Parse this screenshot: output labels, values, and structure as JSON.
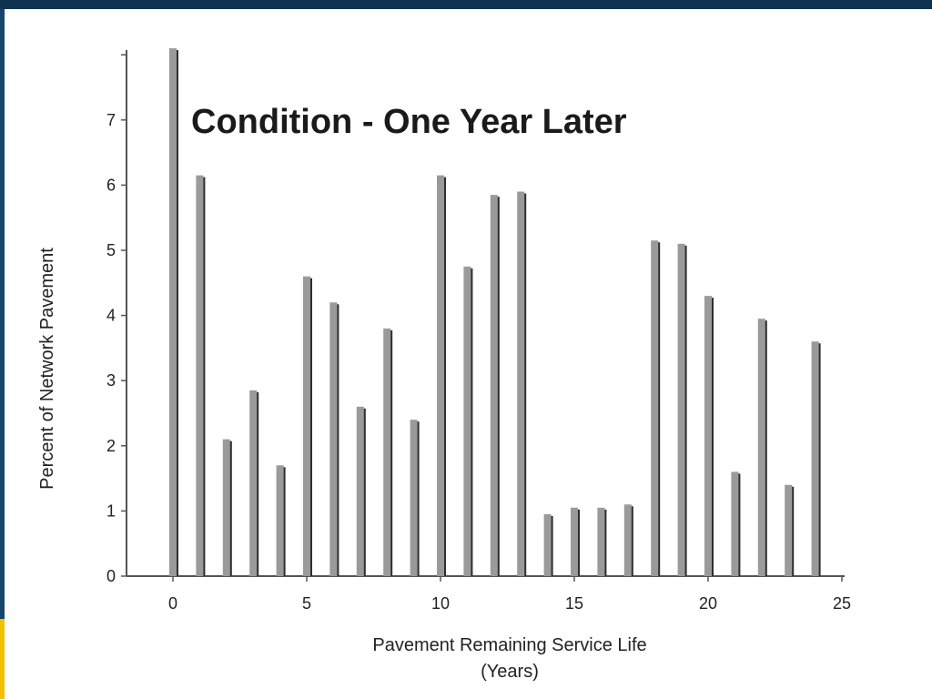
{
  "colors": {
    "frame": "#14466b",
    "frame_top": "#0d3350",
    "accent": "#f2c200",
    "bar_fill": "#9a9a9a",
    "bar_shadow": "#2e2e2e",
    "axis": "#555555"
  },
  "chart_data": {
    "type": "bar",
    "title": "Condition - One Year Later",
    "xlabel": "Pavement Remaining Service Life",
    "xlabel_unit": "(Years)",
    "ylabel": "Percent of Network Pavement",
    "xlim": [
      0,
      25
    ],
    "ylim": [
      0,
      8
    ],
    "x_ticks": [
      0,
      5,
      10,
      15,
      20,
      25
    ],
    "y_ticks": [
      0,
      1,
      2,
      3,
      4,
      5,
      6,
      7
    ],
    "grid": false,
    "legend": "none",
    "x": [
      0,
      1,
      2,
      3,
      4,
      5,
      6,
      7,
      8,
      9,
      10,
      11,
      12,
      13,
      14,
      15,
      16,
      17,
      18,
      19,
      20,
      21,
      22,
      23,
      24
    ],
    "values": [
      8.1,
      6.15,
      2.1,
      2.85,
      1.7,
      4.6,
      4.2,
      2.6,
      3.8,
      2.4,
      6.15,
      4.75,
      5.85,
      5.9,
      0.95,
      1.05,
      1.05,
      1.1,
      5.15,
      5.1,
      4.3,
      1.6,
      3.95,
      1.4,
      3.6
    ]
  }
}
